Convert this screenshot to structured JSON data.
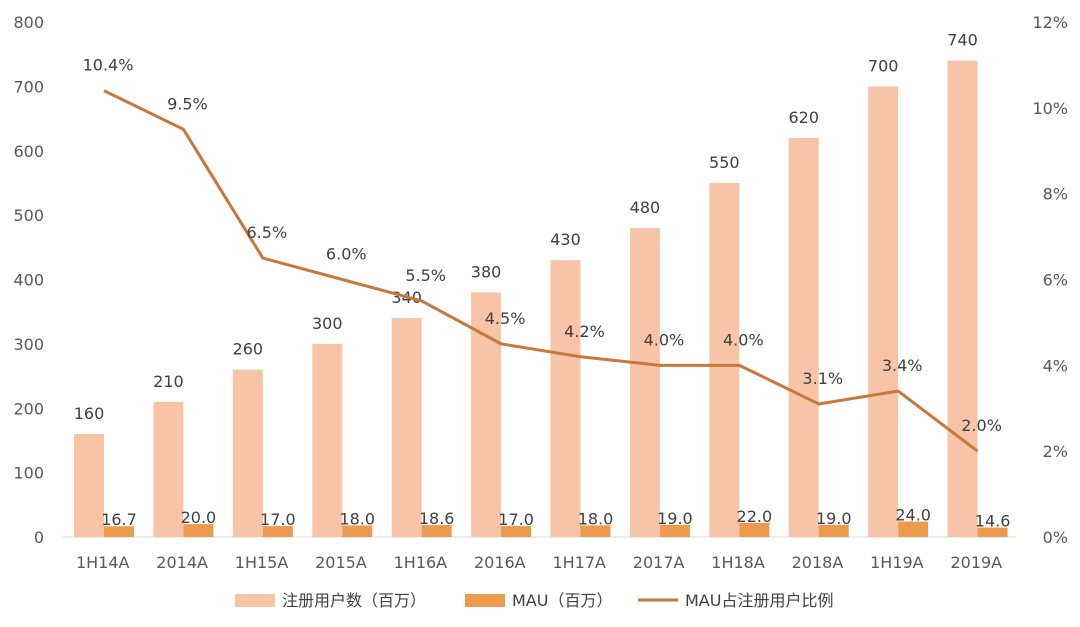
{
  "chart_data": {
    "type": "bar",
    "categories": [
      "1H14A",
      "2014A",
      "1H15A",
      "2015A",
      "1H16A",
      "2016A",
      "1H17A",
      "2017A",
      "1H18A",
      "2018A",
      "1H19A",
      "2019A"
    ],
    "series": [
      {
        "name": "注册用户数（百万）",
        "kind": "bar",
        "axis": "left",
        "color": "#F8C4A8",
        "values": [
          160,
          210,
          260,
          300,
          340,
          380,
          430,
          480,
          550,
          620,
          700,
          740
        ],
        "labels": [
          "160",
          "210",
          "260",
          "300",
          "340",
          "380",
          "430",
          "480",
          "550",
          "620",
          "700",
          "740"
        ]
      },
      {
        "name": "MAU（百万）",
        "kind": "bar",
        "axis": "left",
        "color": "#EE9A4E",
        "values": [
          16.7,
          20.0,
          17.0,
          18.0,
          18.6,
          17.0,
          18.0,
          19.0,
          22.0,
          19.0,
          24.0,
          14.6
        ],
        "labels": [
          "16.7",
          "20.0",
          "17.0",
          "18.0",
          "18.6",
          "17.0",
          "18.0",
          "19.0",
          "22.0",
          "19.0",
          "24.0",
          "14.6"
        ]
      },
      {
        "name": "MAU占注册用户比例",
        "kind": "line",
        "axis": "right",
        "color": "#C8783A",
        "values": [
          10.4,
          9.5,
          6.5,
          6.0,
          5.5,
          4.5,
          4.2,
          4.0,
          4.0,
          3.1,
          3.4,
          2.0
        ],
        "labels": [
          "10.4%",
          "9.5%",
          "6.5%",
          "6.0%",
          "5.5%",
          "4.5%",
          "4.2%",
          "4.0%",
          "4.0%",
          "3.1%",
          "3.4%",
          "2.0%"
        ]
      }
    ],
    "y_left": {
      "min": 0,
      "max": 800,
      "ticks": [
        "0",
        "100",
        "200",
        "300",
        "400",
        "500",
        "600",
        "700",
        "800"
      ]
    },
    "y_right": {
      "min": 0,
      "max": 12,
      "ticks": [
        "0%",
        "2%",
        "4%",
        "6%",
        "8%",
        "10%",
        "12%"
      ]
    },
    "legend_position": "bottom",
    "grid": false
  }
}
